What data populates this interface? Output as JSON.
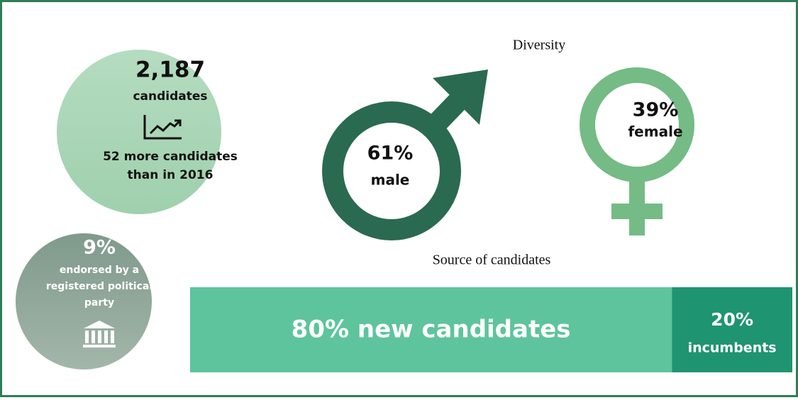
{
  "candidates": {
    "count": "2,187",
    "label": "candidates",
    "note_lines": [
      "52 more candidates",
      "than in 2016"
    ]
  },
  "endorsed": {
    "percent": "9%",
    "lines": [
      "endorsed by a",
      "registered political",
      "party"
    ]
  },
  "diversity": {
    "title": "Diversity",
    "male": {
      "percent": "61%",
      "label": "male"
    },
    "female": {
      "percent": "39%",
      "label": "female"
    }
  },
  "source": {
    "title": "Source of candidates",
    "segments": [
      {
        "value": 80,
        "label": "80% new candidates",
        "color": "#5dc49e"
      },
      {
        "value": 20,
        "label": "20%",
        "sublabel": "incumbents",
        "color": "#1f9470"
      }
    ]
  }
}
